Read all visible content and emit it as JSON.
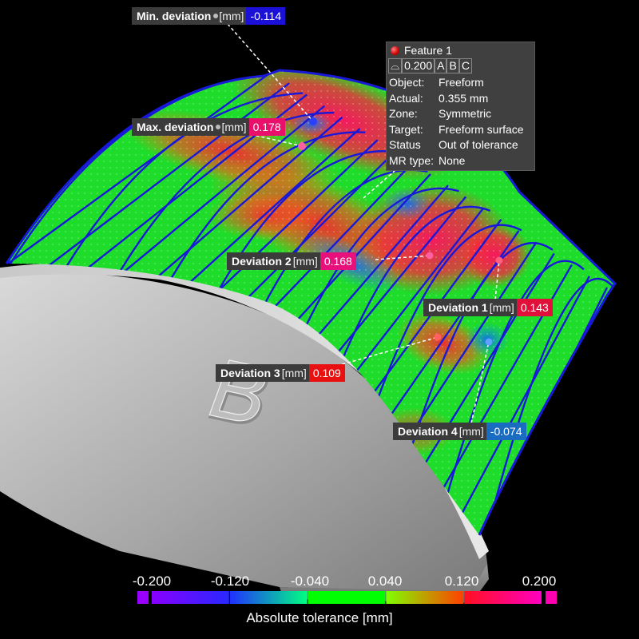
{
  "callouts": {
    "min_dev": {
      "label": "Min. deviation",
      "unit": "[mm]",
      "value": "-0.114",
      "color": "#1a10d8"
    },
    "max_dev": {
      "label": "Max. deviation",
      "unit": "[mm]",
      "value": "0.178",
      "color": "#e8106a"
    },
    "dev2": {
      "label": "Deviation 2",
      "unit": "[mm]",
      "value": "0.168",
      "color": "#e8107a"
    },
    "dev1": {
      "label": "Deviation 1",
      "unit": "[mm]",
      "value": "0.143",
      "color": "#e0103a"
    },
    "dev3": {
      "label": "Deviation 3",
      "unit": "[mm]",
      "value": "0.109",
      "color": "#e81010"
    },
    "dev4": {
      "label": "Deviation 4",
      "unit": "[mm]",
      "value": "-0.074",
      "color": "#1a6cc0"
    }
  },
  "feature": {
    "title": "Feature 1",
    "fcf": {
      "symbol": "⌓",
      "tolerance": "0.200",
      "datums": [
        "A",
        "B",
        "C"
      ]
    },
    "rows": [
      {
        "key": "Object:",
        "value": "Freeform"
      },
      {
        "key": "Actual:",
        "value": "0.355 mm"
      },
      {
        "key": "Zone:",
        "value": "Symmetric"
      },
      {
        "key": "Target:",
        "value": "Freeform surface"
      },
      {
        "key": "Status",
        "value": "Out of tolerance"
      },
      {
        "key": "MR type:",
        "value": "None"
      }
    ]
  },
  "part": {
    "engraved_letter": "B"
  },
  "legend": {
    "ticks": [
      "-0.200",
      "-0.120",
      "-0.040",
      "0.040",
      "0.120",
      "0.200"
    ],
    "title": "Absolute tolerance [mm]",
    "segments": [
      {
        "from": -0.2,
        "to": -0.12,
        "c0": "#8800ff",
        "c1": "#2828ff"
      },
      {
        "from": -0.12,
        "to": -0.04,
        "c0": "#2030ff",
        "c1": "#00ff80"
      },
      {
        "from": -0.04,
        "to": 0.04,
        "c0": "#00ff00",
        "c1": "#00ff00"
      },
      {
        "from": 0.04,
        "to": 0.12,
        "c0": "#80ff00",
        "c1": "#ff4000"
      },
      {
        "from": 0.12,
        "to": 0.2,
        "c0": "#ff1020",
        "c1": "#ff00c0"
      }
    ]
  }
}
